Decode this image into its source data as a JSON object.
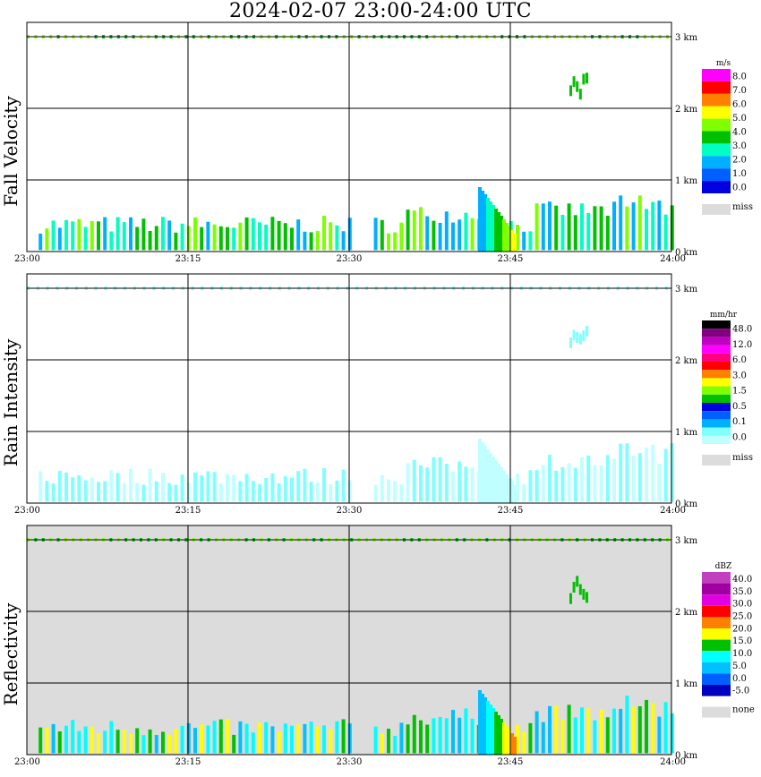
{
  "title": "2024-02-07   23:00-24:00 UTC",
  "colors": {
    "plot_bg_white": "#ffffff",
    "plot_bg_gray": "#dcdcdc",
    "grid": "#000000",
    "missing": "#dcdcdc"
  },
  "chart_data": [
    {
      "type": "heatmap",
      "title": "",
      "ylabel": "Fall Velocity",
      "x_ticks": [
        "23:00",
        "23:15",
        "23:30",
        "23:45",
        "24:00"
      ],
      "y_ticks": [
        "0 km",
        "1 km",
        "2 km",
        "3 km"
      ],
      "xlim": [
        "23:00",
        "24:00"
      ],
      "ylim": [
        0,
        3.2
      ],
      "grid": true,
      "legend": {
        "placement": "right",
        "unit": "m/s",
        "labels": [
          "8.0",
          "7.0",
          "6.0",
          "5.0",
          "4.0",
          "3.0",
          "2.0",
          "1.0",
          "0.0"
        ],
        "colors": [
          "#ff00ff",
          "#ff0000",
          "#ff8000",
          "#ffff00",
          "#80ff00",
          "#00c000",
          "#00ffc0",
          "#00b0ff",
          "#0060ff",
          "#0000e0"
        ],
        "miss_label": "miss"
      }
    },
    {
      "type": "heatmap",
      "title": "",
      "ylabel": "Rain Intensity",
      "x_ticks": [
        "23:00",
        "23:15",
        "23:30",
        "23:45",
        "24:00"
      ],
      "y_ticks": [
        "0 km",
        "1 km",
        "2 km",
        "3 km"
      ],
      "xlim": [
        "23:00",
        "24:00"
      ],
      "ylim": [
        0,
        3.2
      ],
      "grid": true,
      "legend": {
        "placement": "right",
        "unit": "mm/hr",
        "labels": [
          "48.0",
          "12.0",
          "6.0",
          "3.0",
          "1.5",
          "0.5",
          "0.1",
          "0.0"
        ],
        "colors": [
          "#000000",
          "#800080",
          "#c000c0",
          "#ff00ff",
          "#ff0080",
          "#ff0000",
          "#ff8000",
          "#ffff00",
          "#80ff00",
          "#00c000",
          "#0000e0",
          "#0060ff",
          "#00b0ff",
          "#80ffff",
          "#c0ffff"
        ],
        "miss_label": "miss"
      }
    },
    {
      "type": "heatmap",
      "title": "",
      "ylabel": "Reflectivity",
      "x_ticks": [
        "23:00",
        "23:15",
        "23:30",
        "23:45",
        "24:00"
      ],
      "y_ticks": [
        "0 km",
        "1 km",
        "2 km",
        "3 km"
      ],
      "xlim": [
        "23:00",
        "24:00"
      ],
      "ylim": [
        0,
        3.2
      ],
      "grid": true,
      "legend": {
        "placement": "right",
        "unit": "dBZ",
        "labels": [
          "40.0",
          "35.0",
          "30.0",
          "25.0",
          "20.0",
          "15.0",
          "10.0",
          "5.0",
          "0.0",
          "-5.0"
        ],
        "colors": [
          "#c040c0",
          "#a000a0",
          "#e000e0",
          "#ff0000",
          "#ff8000",
          "#ffff00",
          "#00c000",
          "#00ffff",
          "#00c0ff",
          "#0060ff",
          "#0000c0"
        ],
        "miss_label": "none"
      }
    }
  ]
}
